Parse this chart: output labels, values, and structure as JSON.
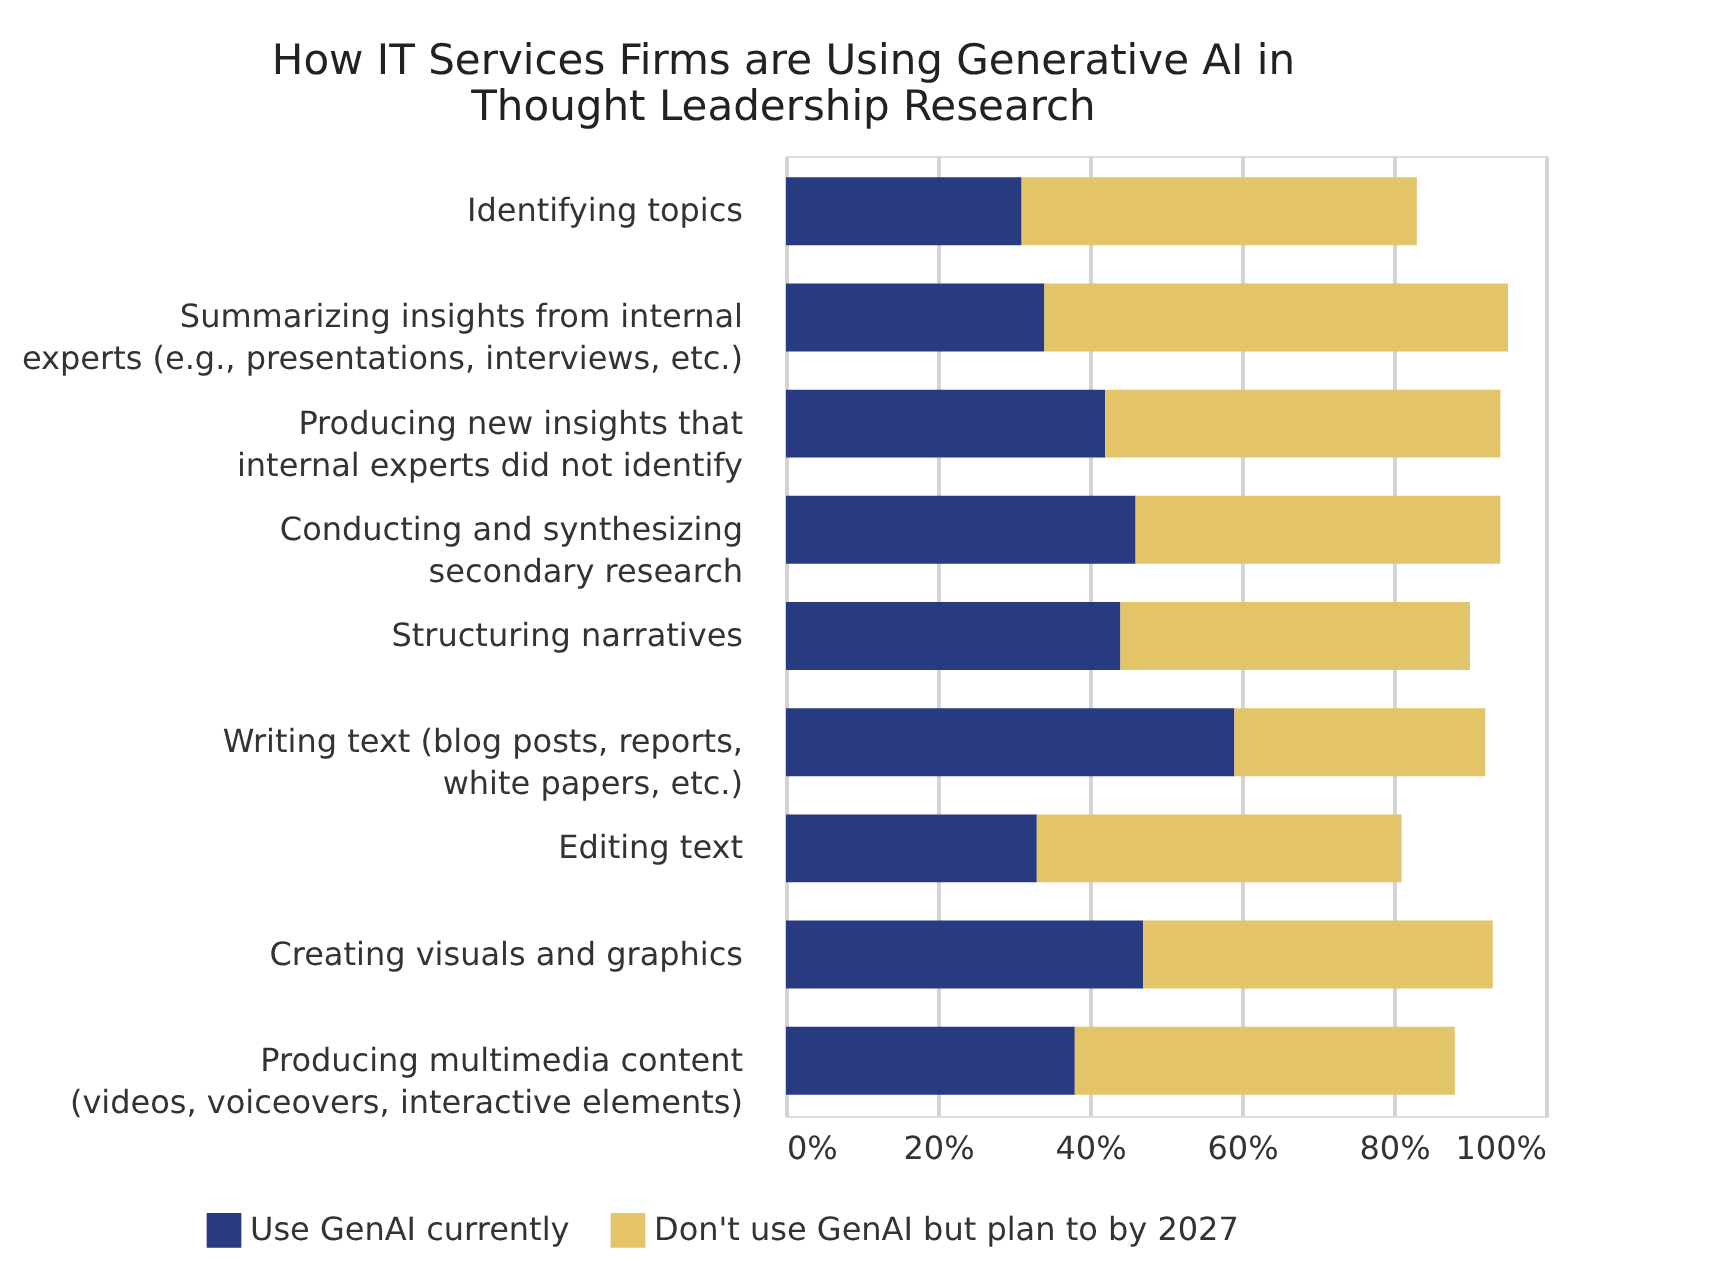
{
  "chart_data": {
    "type": "bar",
    "orientation": "horizontal",
    "stacked": true,
    "title": "How IT Services Firms are Using Generative AI in\nThought Leadership Research",
    "categories": [
      "Identifying topics",
      "Summarizing insights from internal\nexperts (e.g., presentations, interviews, etc.)",
      "Producing new insights that\ninternal experts did not identify",
      "Conducting and synthesizing\nsecondary research",
      "Structuring narratives",
      "Writing text (blog posts, reports,\nwhite papers, etc.)",
      "Editing text",
      "Creating visuals and graphics",
      "Producing multimedia content\n(videos, voiceovers, interactive elements)"
    ],
    "series": [
      {
        "name": "Use GenAI currently",
        "color": "#283a80",
        "values": [
          31,
          34,
          42,
          46,
          44,
          59,
          33,
          47,
          38
        ]
      },
      {
        "name": "Don't use GenAI but plan to by 2027",
        "color": "#e4c468",
        "values": [
          52,
          61,
          52,
          48,
          46,
          33,
          48,
          46,
          50
        ]
      }
    ],
    "xlim": [
      0,
      100
    ],
    "xticks": [
      {
        "value": 0,
        "label": "0%"
      },
      {
        "value": 20,
        "label": "20%"
      },
      {
        "value": 40,
        "label": "40%"
      },
      {
        "value": 60,
        "label": "60%"
      },
      {
        "value": 80,
        "label": "80%"
      },
      {
        "value": 100,
        "label": "100%"
      }
    ],
    "grid": "x",
    "legend": "bottom"
  }
}
